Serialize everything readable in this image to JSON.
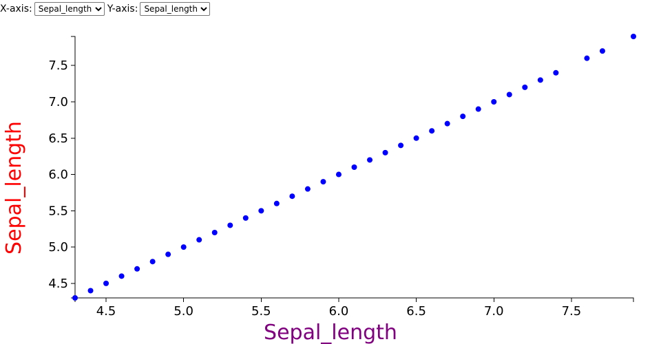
{
  "controls": {
    "x_label": "X-axis:",
    "y_label": "Y-axis:",
    "x_selected": "Sepal_length",
    "y_selected": "Sepal_length"
  },
  "colors": {
    "point": "#0000ff",
    "xlabel": "#800080",
    "ylabel": "#ff0000"
  },
  "chart_data": {
    "type": "scatter",
    "title": "",
    "xlabel": "Sepal_length",
    "ylabel": "Sepal_length",
    "xlim": [
      4.3,
      7.9
    ],
    "ylim": [
      4.3,
      7.9
    ],
    "x_ticks": [
      "4.5",
      "5.0",
      "5.5",
      "6.0",
      "6.5",
      "7.0",
      "7.5"
    ],
    "y_ticks": [
      "4.5",
      "5.0",
      "5.5",
      "6.0",
      "6.5",
      "7.0",
      "7.5"
    ],
    "grid": false,
    "points": [
      {
        "x": 4.3,
        "y": 4.3
      },
      {
        "x": 4.4,
        "y": 4.4
      },
      {
        "x": 4.5,
        "y": 4.5
      },
      {
        "x": 4.6,
        "y": 4.6
      },
      {
        "x": 4.7,
        "y": 4.7
      },
      {
        "x": 4.8,
        "y": 4.8
      },
      {
        "x": 4.9,
        "y": 4.9
      },
      {
        "x": 5.0,
        "y": 5.0
      },
      {
        "x": 5.1,
        "y": 5.1
      },
      {
        "x": 5.2,
        "y": 5.2
      },
      {
        "x": 5.3,
        "y": 5.3
      },
      {
        "x": 5.4,
        "y": 5.4
      },
      {
        "x": 5.5,
        "y": 5.5
      },
      {
        "x": 5.6,
        "y": 5.6
      },
      {
        "x": 5.7,
        "y": 5.7
      },
      {
        "x": 5.8,
        "y": 5.8
      },
      {
        "x": 5.9,
        "y": 5.9
      },
      {
        "x": 6.0,
        "y": 6.0
      },
      {
        "x": 6.1,
        "y": 6.1
      },
      {
        "x": 6.2,
        "y": 6.2
      },
      {
        "x": 6.3,
        "y": 6.3
      },
      {
        "x": 6.4,
        "y": 6.4
      },
      {
        "x": 6.5,
        "y": 6.5
      },
      {
        "x": 6.6,
        "y": 6.6
      },
      {
        "x": 6.7,
        "y": 6.7
      },
      {
        "x": 6.8,
        "y": 6.8
      },
      {
        "x": 6.9,
        "y": 6.9
      },
      {
        "x": 7.0,
        "y": 7.0
      },
      {
        "x": 7.1,
        "y": 7.1
      },
      {
        "x": 7.2,
        "y": 7.2
      },
      {
        "x": 7.3,
        "y": 7.3
      },
      {
        "x": 7.4,
        "y": 7.4
      },
      {
        "x": 7.6,
        "y": 7.6
      },
      {
        "x": 7.7,
        "y": 7.7
      },
      {
        "x": 7.9,
        "y": 7.9
      }
    ]
  }
}
